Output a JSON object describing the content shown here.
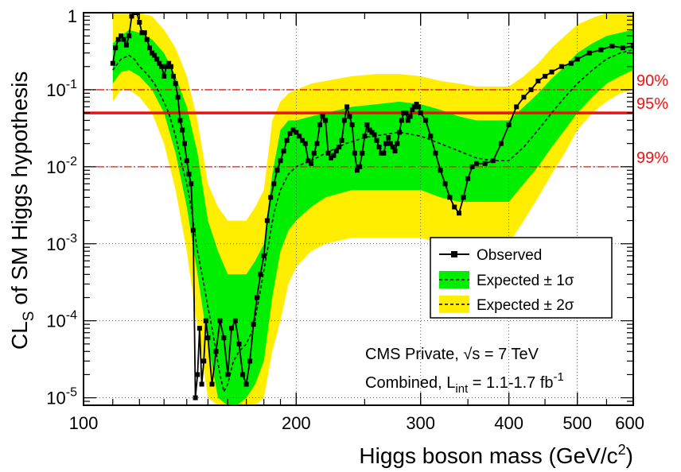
{
  "chart_data": {
    "type": "line",
    "xlabel": "Higgs boson mass (GeV/c",
    "xlabel_sup": "2",
    "xlabel_end": ")",
    "ylabel": "CL",
    "ylabel_sub": "S",
    "ylabel_rest": " of SM Higgs hypothesis",
    "xscale": "log",
    "yscale": "log",
    "xlim": [
      100,
      600
    ],
    "ylim": [
      8e-06,
      1
    ],
    "grid": true,
    "x_ticks": [
      {
        "value": 100,
        "label": "100"
      },
      {
        "value": 200,
        "label": "200"
      },
      {
        "value": 300,
        "label": "300"
      },
      {
        "value": 400,
        "label": "400"
      },
      {
        "value": 500,
        "label": "500"
      },
      {
        "value": 600,
        "label": "600"
      }
    ],
    "y_ticks": [
      {
        "value": 1,
        "base": "1",
        "exp": ""
      },
      {
        "value": 0.1,
        "base": "10",
        "exp": "-1"
      },
      {
        "value": 0.01,
        "base": "10",
        "exp": "-2"
      },
      {
        "value": 0.001,
        "base": "10",
        "exp": "-3"
      },
      {
        "value": 0.0001,
        "base": "10",
        "exp": "-4"
      },
      {
        "value": 1e-05,
        "base": "10",
        "exp": "-5"
      }
    ],
    "cl_lines": [
      {
        "value": 0.1,
        "label": "90%",
        "style": "dashdot"
      },
      {
        "value": 0.05,
        "label": "95%",
        "style": "solid"
      },
      {
        "value": 0.01,
        "label": "99%",
        "style": "dashdot"
      }
    ],
    "legend": {
      "position": "right-center",
      "entries": [
        "Observed",
        "Expected ± 1σ",
        "Expected ± 2σ"
      ]
    },
    "annotations": {
      "line1_a": "CMS Private, ",
      "line1_sqrt": "√s",
      "line1_b": " = 7 TeV",
      "line2_a": "Combined, L",
      "line2_sub": "int",
      "line2_b": " = 1.1-1.7 fb",
      "line2_sup": "-1"
    },
    "colors": {
      "band_2sigma": "#ffee00",
      "band_1sigma": "#00ee00",
      "observed": "#000000",
      "cl_lines": "#ee1111"
    },
    "series": [
      {
        "name": "Observed",
        "points": [
          [
            110,
            0.22
          ],
          [
            111,
            0.35
          ],
          [
            112,
            0.45
          ],
          [
            113,
            0.5
          ],
          [
            114,
            0.45
          ],
          [
            115,
            0.38
          ],
          [
            116,
            0.5
          ],
          [
            117,
            0.9
          ],
          [
            118,
            1.0
          ],
          [
            119,
            1.0
          ],
          [
            120,
            0.75
          ],
          [
            121,
            0.55
          ],
          [
            122,
            0.55
          ],
          [
            123,
            0.45
          ],
          [
            124,
            0.35
          ],
          [
            125,
            0.3
          ],
          [
            126,
            0.28
          ],
          [
            127,
            0.25
          ],
          [
            128,
            0.22
          ],
          [
            129,
            0.2
          ],
          [
            130,
            0.15
          ],
          [
            131,
            0.2
          ],
          [
            132,
            0.22
          ],
          [
            133,
            0.2
          ],
          [
            134,
            0.15
          ],
          [
            135,
            0.12
          ],
          [
            136,
            0.08
          ],
          [
            137,
            0.04
          ],
          [
            138,
            0.03
          ],
          [
            139,
            0.02
          ],
          [
            140,
            0.012
          ],
          [
            141,
            0.008
          ],
          [
            142,
            0.006
          ],
          [
            143,
            0.0015
          ],
          [
            144,
            1e-05
          ],
          [
            145,
            2e-05
          ],
          [
            146,
            8e-05
          ],
          [
            147,
            1.5e-05
          ],
          [
            148,
            3e-05
          ],
          [
            149,
            0.0001
          ],
          [
            150,
            6e-05
          ],
          [
            152,
            1.5e-05
          ],
          [
            154,
            4e-05
          ],
          [
            156,
            0.0001
          ],
          [
            158,
            6e-05
          ],
          [
            160,
            2e-05
          ],
          [
            162,
            8e-05
          ],
          [
            164,
            0.0001
          ],
          [
            166,
            5e-05
          ],
          [
            168,
            2e-05
          ],
          [
            170,
            1.5e-05
          ],
          [
            172,
            3e-05
          ],
          [
            174,
            9e-05
          ],
          [
            176,
            0.0002
          ],
          [
            178,
            0.0004
          ],
          [
            180,
            0.0007
          ],
          [
            182,
            0.002
          ],
          [
            184,
            0.004
          ],
          [
            186,
            0.006
          ],
          [
            188,
            0.009
          ],
          [
            190,
            0.012
          ],
          [
            192,
            0.016
          ],
          [
            194,
            0.022
          ],
          [
            196,
            0.027
          ],
          [
            198,
            0.03
          ],
          [
            200,
            0.028
          ],
          [
            202,
            0.025
          ],
          [
            204,
            0.022
          ],
          [
            206,
            0.02
          ],
          [
            208,
            0.012
          ],
          [
            210,
            0.011
          ],
          [
            212,
            0.015
          ],
          [
            214,
            0.02
          ],
          [
            216,
            0.035
          ],
          [
            218,
            0.045
          ],
          [
            220,
            0.04
          ],
          [
            222,
            0.015
          ],
          [
            224,
            0.013
          ],
          [
            226,
            0.014
          ],
          [
            228,
            0.016
          ],
          [
            230,
            0.018
          ],
          [
            232,
            0.022
          ],
          [
            234,
            0.04
          ],
          [
            236,
            0.06
          ],
          [
            238,
            0.045
          ],
          [
            240,
            0.035
          ],
          [
            242,
            0.015
          ],
          [
            244,
            0.009
          ],
          [
            246,
            0.01
          ],
          [
            248,
            0.015
          ],
          [
            250,
            0.025
          ],
          [
            252,
            0.035
          ],
          [
            254,
            0.03
          ],
          [
            256,
            0.028
          ],
          [
            258,
            0.026
          ],
          [
            260,
            0.022
          ],
          [
            262,
            0.018
          ],
          [
            264,
            0.015
          ],
          [
            266,
            0.015
          ],
          [
            268,
            0.02
          ],
          [
            270,
            0.024
          ],
          [
            272,
            0.02
          ],
          [
            274,
            0.018
          ],
          [
            276,
            0.016
          ],
          [
            278,
            0.02
          ],
          [
            280,
            0.028
          ],
          [
            282,
            0.04
          ],
          [
            284,
            0.05
          ],
          [
            286,
            0.05
          ],
          [
            288,
            0.04
          ],
          [
            290,
            0.045
          ],
          [
            292,
            0.055
          ],
          [
            294,
            0.06
          ],
          [
            296,
            0.065
          ],
          [
            298,
            0.06
          ],
          [
            300,
            0.05
          ],
          [
            305,
            0.04
          ],
          [
            310,
            0.025
          ],
          [
            315,
            0.015
          ],
          [
            320,
            0.009
          ],
          [
            325,
            0.006
          ],
          [
            330,
            0.004
          ],
          [
            335,
            0.003
          ],
          [
            340,
            0.0025
          ],
          [
            345,
            0.004
          ],
          [
            350,
            0.007
          ],
          [
            355,
            0.01
          ],
          [
            360,
            0.011
          ],
          [
            370,
            0.011
          ],
          [
            380,
            0.012
          ],
          [
            390,
            0.02
          ],
          [
            400,
            0.035
          ],
          [
            410,
            0.06
          ],
          [
            420,
            0.08
          ],
          [
            430,
            0.1
          ],
          [
            440,
            0.13
          ],
          [
            450,
            0.15
          ],
          [
            460,
            0.17
          ],
          [
            475,
            0.2
          ],
          [
            490,
            0.22
          ],
          [
            500,
            0.25
          ],
          [
            520,
            0.3
          ],
          [
            540,
            0.33
          ],
          [
            560,
            0.37
          ],
          [
            580,
            0.35
          ],
          [
            600,
            0.37
          ]
        ]
      },
      {
        "name": "Expected",
        "points": [
          [
            110,
            0.18
          ],
          [
            113,
            0.25
          ],
          [
            116,
            0.28
          ],
          [
            118,
            0.25
          ],
          [
            120,
            0.2
          ],
          [
            123,
            0.16
          ],
          [
            126,
            0.12
          ],
          [
            129,
            0.08
          ],
          [
            132,
            0.05
          ],
          [
            135,
            0.025
          ],
          [
            138,
            0.01
          ],
          [
            140,
            0.006
          ],
          [
            142,
            0.003
          ],
          [
            145,
            0.0008
          ],
          [
            148,
            0.0003
          ],
          [
            150,
            0.00015
          ],
          [
            152,
            8e-05
          ],
          [
            154,
            4e-05
          ],
          [
            156,
            2e-05
          ],
          [
            158,
            1.2e-05
          ],
          [
            160,
            1.5e-05
          ],
          [
            163,
            3e-05
          ],
          [
            166,
            4e-05
          ],
          [
            170,
            5e-05
          ],
          [
            174,
            8e-05
          ],
          [
            178,
            0.00025
          ],
          [
            182,
            0.0008
          ],
          [
            186,
            0.0025
          ],
          [
            190,
            0.005
          ],
          [
            195,
            0.008
          ],
          [
            200,
            0.01
          ],
          [
            210,
            0.012
          ],
          [
            220,
            0.015
          ],
          [
            235,
            0.02
          ],
          [
            250,
            0.024
          ],
          [
            265,
            0.026
          ],
          [
            280,
            0.028
          ],
          [
            300,
            0.025
          ],
          [
            320,
            0.02
          ],
          [
            340,
            0.016
          ],
          [
            360,
            0.013
          ],
          [
            380,
            0.012
          ],
          [
            400,
            0.012
          ],
          [
            420,
            0.018
          ],
          [
            440,
            0.03
          ],
          [
            460,
            0.05
          ],
          [
            480,
            0.08
          ],
          [
            500,
            0.12
          ],
          [
            525,
            0.18
          ],
          [
            550,
            0.25
          ],
          [
            575,
            0.3
          ],
          [
            600,
            0.33
          ]
        ]
      }
    ],
    "bands": {
      "x": [
        110,
        113,
        116,
        120,
        125,
        130,
        135,
        140,
        145,
        150,
        155,
        160,
        165,
        170,
        175,
        180,
        185,
        190,
        195,
        200,
        210,
        220,
        240,
        260,
        280,
        300,
        320,
        340,
        360,
        380,
        400,
        420,
        440,
        460,
        480,
        500,
        525,
        550,
        575,
        600
      ],
      "lo2": [
        0.07,
        0.1,
        0.1,
        0.08,
        0.05,
        0.02,
        0.005,
        0.0008,
        8e-05,
        1e-05,
        8e-06,
        8e-06,
        8e-06,
        8e-06,
        8e-06,
        1e-05,
        4e-05,
        0.0001,
        0.0003,
        0.0005,
        0.0008,
        0.001,
        0.0012,
        0.0012,
        0.0012,
        0.0012,
        0.001,
        0.0009,
        0.0009,
        0.0009,
        0.001,
        0.002,
        0.004,
        0.008,
        0.015,
        0.03,
        0.05,
        0.07,
        0.09,
        0.1
      ],
      "lo1": [
        0.12,
        0.17,
        0.18,
        0.15,
        0.1,
        0.05,
        0.015,
        0.003,
        0.0004,
        5e-05,
        1e-05,
        8e-06,
        8e-06,
        1e-05,
        1.5e-05,
        3e-05,
        0.0002,
        0.0008,
        0.0015,
        0.002,
        0.003,
        0.004,
        0.005,
        0.005,
        0.005,
        0.005,
        0.004,
        0.0035,
        0.0035,
        0.0035,
        0.0035,
        0.006,
        0.01,
        0.018,
        0.03,
        0.05,
        0.08,
        0.12,
        0.15,
        0.18
      ],
      "hi1": [
        0.4,
        0.5,
        0.6,
        0.55,
        0.45,
        0.3,
        0.15,
        0.06,
        0.015,
        0.002,
        0.0008,
        0.0004,
        0.0004,
        0.0004,
        0.0006,
        0.001,
        0.008,
        0.03,
        0.04,
        0.04,
        0.045,
        0.05,
        0.06,
        0.065,
        0.07,
        0.065,
        0.055,
        0.045,
        0.04,
        0.04,
        0.04,
        0.06,
        0.09,
        0.14,
        0.2,
        0.3,
        0.4,
        0.5,
        0.55,
        0.6
      ],
      "hi2": [
        1.0,
        1.0,
        1.0,
        1.0,
        0.9,
        0.6,
        0.35,
        0.15,
        0.04,
        0.006,
        0.003,
        0.002,
        0.002,
        0.002,
        0.003,
        0.005,
        0.04,
        0.07,
        0.09,
        0.1,
        0.12,
        0.13,
        0.15,
        0.16,
        0.16,
        0.15,
        0.13,
        0.12,
        0.11,
        0.11,
        0.11,
        0.15,
        0.22,
        0.35,
        0.5,
        0.7,
        0.85,
        1.0,
        1.0,
        1.0
      ]
    }
  }
}
